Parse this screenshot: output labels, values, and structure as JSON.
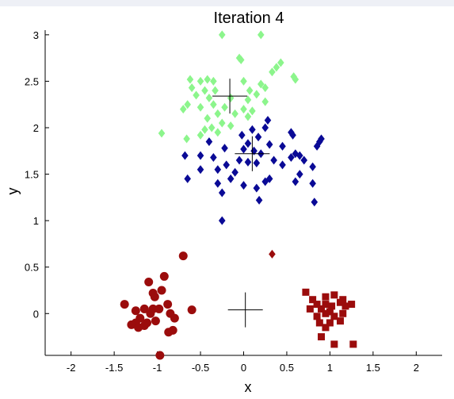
{
  "chart_data": {
    "type": "scatter",
    "title": "Iteration 4",
    "xlabel": "x",
    "ylabel": "y",
    "xlim": [
      -2.3,
      2.3
    ],
    "ylim": [
      -0.45,
      3.05
    ],
    "xticks": [
      -2,
      -1.5,
      -1,
      -0.5,
      0,
      0.5,
      1,
      1.5,
      2
    ],
    "xtick_labels": [
      "-2",
      "-1.5",
      "-1",
      "-0.5",
      "0",
      "0.5",
      "1",
      "1.5",
      "2"
    ],
    "yticks": [
      0,
      0.5,
      1,
      1.5,
      2,
      2.5,
      3
    ],
    "ytick_labels": [
      "0",
      "0.5",
      "1",
      "1.5",
      "2",
      "2.5",
      "3"
    ],
    "grid": false,
    "colors": {
      "green": "#8cf58c",
      "blue": "#0a0a96",
      "darkred": "#9b0c0c",
      "centroid": "#000000"
    },
    "series": [
      {
        "marker": "diamond",
        "color": "#8cf58c",
        "points": [
          [
            -0.25,
            3.0
          ],
          [
            0.2,
            3.0
          ],
          [
            -0.05,
            2.75
          ],
          [
            -0.03,
            2.73
          ],
          [
            0.43,
            2.7
          ],
          [
            0.38,
            2.65
          ],
          [
            0.33,
            2.6
          ],
          [
            0.58,
            2.55
          ],
          [
            0.6,
            2.52
          ],
          [
            -0.62,
            2.52
          ],
          [
            -0.5,
            2.5
          ],
          [
            -0.42,
            2.52
          ],
          [
            -0.35,
            2.5
          ],
          [
            0.0,
            2.5
          ],
          [
            0.2,
            2.47
          ],
          [
            0.25,
            2.43
          ],
          [
            -0.6,
            2.43
          ],
          [
            -0.45,
            2.4
          ],
          [
            -0.33,
            2.4
          ],
          [
            0.07,
            2.4
          ],
          [
            0.15,
            2.36
          ],
          [
            -0.55,
            2.35
          ],
          [
            -0.4,
            2.32
          ],
          [
            -0.15,
            2.32
          ],
          [
            0.05,
            2.3
          ],
          [
            0.25,
            2.28
          ],
          [
            -0.65,
            2.25
          ],
          [
            -0.5,
            2.22
          ],
          [
            -0.35,
            2.25
          ],
          [
            -0.22,
            2.22
          ],
          [
            0.0,
            2.2
          ],
          [
            0.1,
            2.18
          ],
          [
            -0.7,
            2.2
          ],
          [
            -0.3,
            2.15
          ],
          [
            -0.1,
            2.15
          ],
          [
            -0.42,
            2.1
          ],
          [
            -0.25,
            2.05
          ],
          [
            0.05,
            2.12
          ],
          [
            -0.15,
            2.02
          ],
          [
            -0.37,
            2.0
          ],
          [
            -0.45,
            1.98
          ],
          [
            -0.3,
            1.95
          ],
          [
            -0.5,
            1.92
          ],
          [
            -0.95,
            1.94
          ],
          [
            -0.66,
            1.88
          ]
        ]
      },
      {
        "marker": "diamond",
        "color": "#0a0a96",
        "points": [
          [
            0.28,
            2.08
          ],
          [
            0.25,
            2.0
          ],
          [
            0.1,
            1.98
          ],
          [
            0.55,
            1.95
          ],
          [
            0.57,
            1.92
          ],
          [
            -0.02,
            1.92
          ],
          [
            0.17,
            1.9
          ],
          [
            0.9,
            1.88
          ],
          [
            0.88,
            1.85
          ],
          [
            -0.4,
            1.85
          ],
          [
            0.05,
            1.83
          ],
          [
            0.3,
            1.82
          ],
          [
            0.45,
            1.8
          ],
          [
            0.85,
            1.8
          ],
          [
            -0.22,
            1.78
          ],
          [
            0.0,
            1.77
          ],
          [
            0.12,
            1.75
          ],
          [
            0.2,
            1.72
          ],
          [
            -0.5,
            1.7
          ],
          [
            0.6,
            1.72
          ],
          [
            0.55,
            1.68
          ],
          [
            0.65,
            1.7
          ],
          [
            -0.68,
            1.7
          ],
          [
            -0.35,
            1.68
          ],
          [
            -0.05,
            1.65
          ],
          [
            0.05,
            1.63
          ],
          [
            0.15,
            1.62
          ],
          [
            0.35,
            1.65
          ],
          [
            0.7,
            1.65
          ],
          [
            -0.2,
            1.6
          ],
          [
            0.45,
            1.6
          ],
          [
            -0.5,
            1.55
          ],
          [
            -0.3,
            1.55
          ],
          [
            0.8,
            1.58
          ],
          [
            -0.1,
            1.52
          ],
          [
            0.65,
            1.5
          ],
          [
            -0.15,
            1.45
          ],
          [
            0.3,
            1.45
          ],
          [
            0.25,
            1.42
          ],
          [
            -0.65,
            1.45
          ],
          [
            -0.3,
            1.4
          ],
          [
            0.6,
            1.42
          ],
          [
            0.0,
            1.38
          ],
          [
            0.15,
            1.35
          ],
          [
            0.8,
            1.4
          ],
          [
            -0.25,
            1.3
          ],
          [
            0.18,
            1.22
          ],
          [
            0.82,
            1.2
          ],
          [
            -0.25,
            1.0
          ]
        ]
      },
      {
        "marker": "circle",
        "color": "#9b0c0c",
        "points": [
          [
            -0.7,
            0.62
          ],
          [
            -0.92,
            0.4
          ],
          [
            -1.1,
            0.34
          ],
          [
            -1.05,
            0.22
          ],
          [
            -1.03,
            0.18
          ],
          [
            -0.95,
            0.25
          ],
          [
            -0.88,
            0.1
          ],
          [
            -1.15,
            0.05
          ],
          [
            -1.05,
            0.05
          ],
          [
            -0.98,
            0.05
          ],
          [
            -1.38,
            0.1
          ],
          [
            -1.25,
            0.03
          ],
          [
            -1.08,
            0.0
          ],
          [
            -0.6,
            0.04
          ],
          [
            -0.85,
            0.0
          ],
          [
            -0.8,
            -0.05
          ],
          [
            -1.2,
            -0.05
          ],
          [
            -1.12,
            -0.1
          ],
          [
            -1.25,
            -0.1
          ],
          [
            -1.02,
            -0.08
          ],
          [
            -1.15,
            -0.13
          ],
          [
            -1.3,
            -0.12
          ],
          [
            -1.22,
            -0.15
          ],
          [
            -0.82,
            -0.18
          ],
          [
            -0.87,
            -0.2
          ],
          [
            -0.97,
            -0.45
          ]
        ]
      },
      {
        "marker": "square",
        "color": "#9b0c0c",
        "points": [
          [
            0.72,
            0.23
          ],
          [
            0.8,
            0.15
          ],
          [
            0.95,
            0.18
          ],
          [
            1.05,
            0.2
          ],
          [
            1.15,
            0.15
          ],
          [
            0.85,
            0.1
          ],
          [
            0.95,
            0.1
          ],
          [
            1.02,
            0.08
          ],
          [
            1.12,
            0.12
          ],
          [
            1.25,
            0.1
          ],
          [
            0.77,
            0.05
          ],
          [
            0.9,
            0.05
          ],
          [
            1.0,
            0.02
          ],
          [
            1.18,
            0.08
          ],
          [
            0.85,
            -0.03
          ],
          [
            0.95,
            0.0
          ],
          [
            1.05,
            -0.03
          ],
          [
            1.15,
            0.0
          ],
          [
            0.88,
            -0.1
          ],
          [
            1.0,
            -0.1
          ],
          [
            1.12,
            -0.08
          ],
          [
            0.95,
            -0.15
          ],
          [
            0.9,
            -0.25
          ],
          [
            1.05,
            -0.33
          ],
          [
            1.27,
            -0.33
          ]
        ]
      },
      {
        "marker": "diamond",
        "color": "#9b0c0c",
        "points": [
          [
            0.33,
            0.64
          ]
        ]
      }
    ],
    "centroids": [
      [
        -0.16,
        2.34
      ],
      [
        0.1,
        1.72
      ],
      [
        0.02,
        0.04
      ]
    ]
  }
}
